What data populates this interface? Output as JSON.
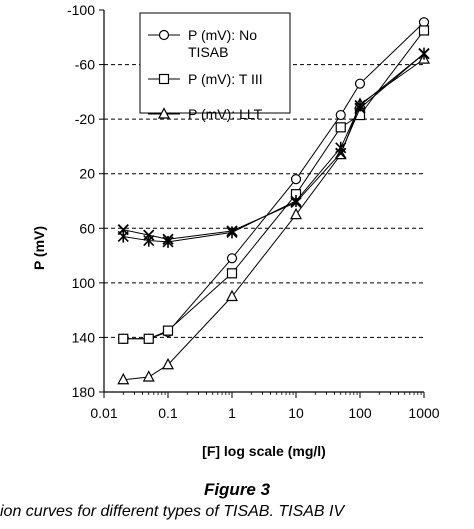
{
  "chart_data": {
    "type": "line",
    "xlabel": "[F] log scale (mg/l)",
    "ylabel": "P (mV)",
    "xscale": "log",
    "xlim": [
      0.01,
      1000
    ],
    "ylim": [
      180,
      -100
    ],
    "y_inverted": true,
    "x_ticks": [
      "0.01",
      "0.1",
      "1",
      "10",
      "100",
      "1000"
    ],
    "y_ticks": [
      "-100",
      "-60",
      "-20",
      "20",
      "60",
      "100",
      "140",
      "180"
    ],
    "grid": "horizontal dashed",
    "legend_position": "top-left inside plot",
    "series": [
      {
        "name": "P (mV): No TISAB",
        "legend_lines": [
          "P (mV): No",
          "TISAB"
        ],
        "marker": "circle",
        "x": [
          0.02,
          0.05,
          0.1,
          1,
          10,
          50,
          100,
          1000
        ],
        "y": [
          141,
          141,
          136,
          82,
          24,
          -23,
          -46,
          -91
        ]
      },
      {
        "name": "P (mV): T III",
        "legend_lines": [
          "P (mV): T III"
        ],
        "marker": "square",
        "x": [
          0.02,
          0.05,
          0.1,
          1,
          10,
          50,
          100,
          1000
        ],
        "y": [
          141,
          141,
          135,
          93,
          35,
          -14,
          -23,
          -85
        ]
      },
      {
        "name": "P (mV): LLT",
        "legend_lines": [
          "P (mV): LLT"
        ],
        "marker": "triangle",
        "x": [
          0.02,
          0.05,
          0.1,
          1,
          10,
          50,
          100,
          1000
        ],
        "y": [
          171,
          169,
          160,
          110,
          50,
          6,
          -31,
          -64
        ]
      },
      {
        "name": "",
        "marker": "x",
        "x": [
          0.02,
          0.05,
          0.1,
          1,
          10,
          50,
          100,
          1000
        ],
        "y": [
          61,
          65,
          68,
          62,
          41,
          5,
          -28,
          -68
        ]
      },
      {
        "name": "",
        "marker": "star",
        "x": [
          0.02,
          0.05,
          0.1,
          1,
          10,
          50,
          100,
          1000
        ],
        "y": [
          66,
          69,
          70,
          63,
          40,
          1,
          -30,
          -68
        ]
      }
    ]
  },
  "figure": {
    "label": "Figure 3",
    "caption": "ion curves for different types of TISAB. TISAB IV"
  }
}
